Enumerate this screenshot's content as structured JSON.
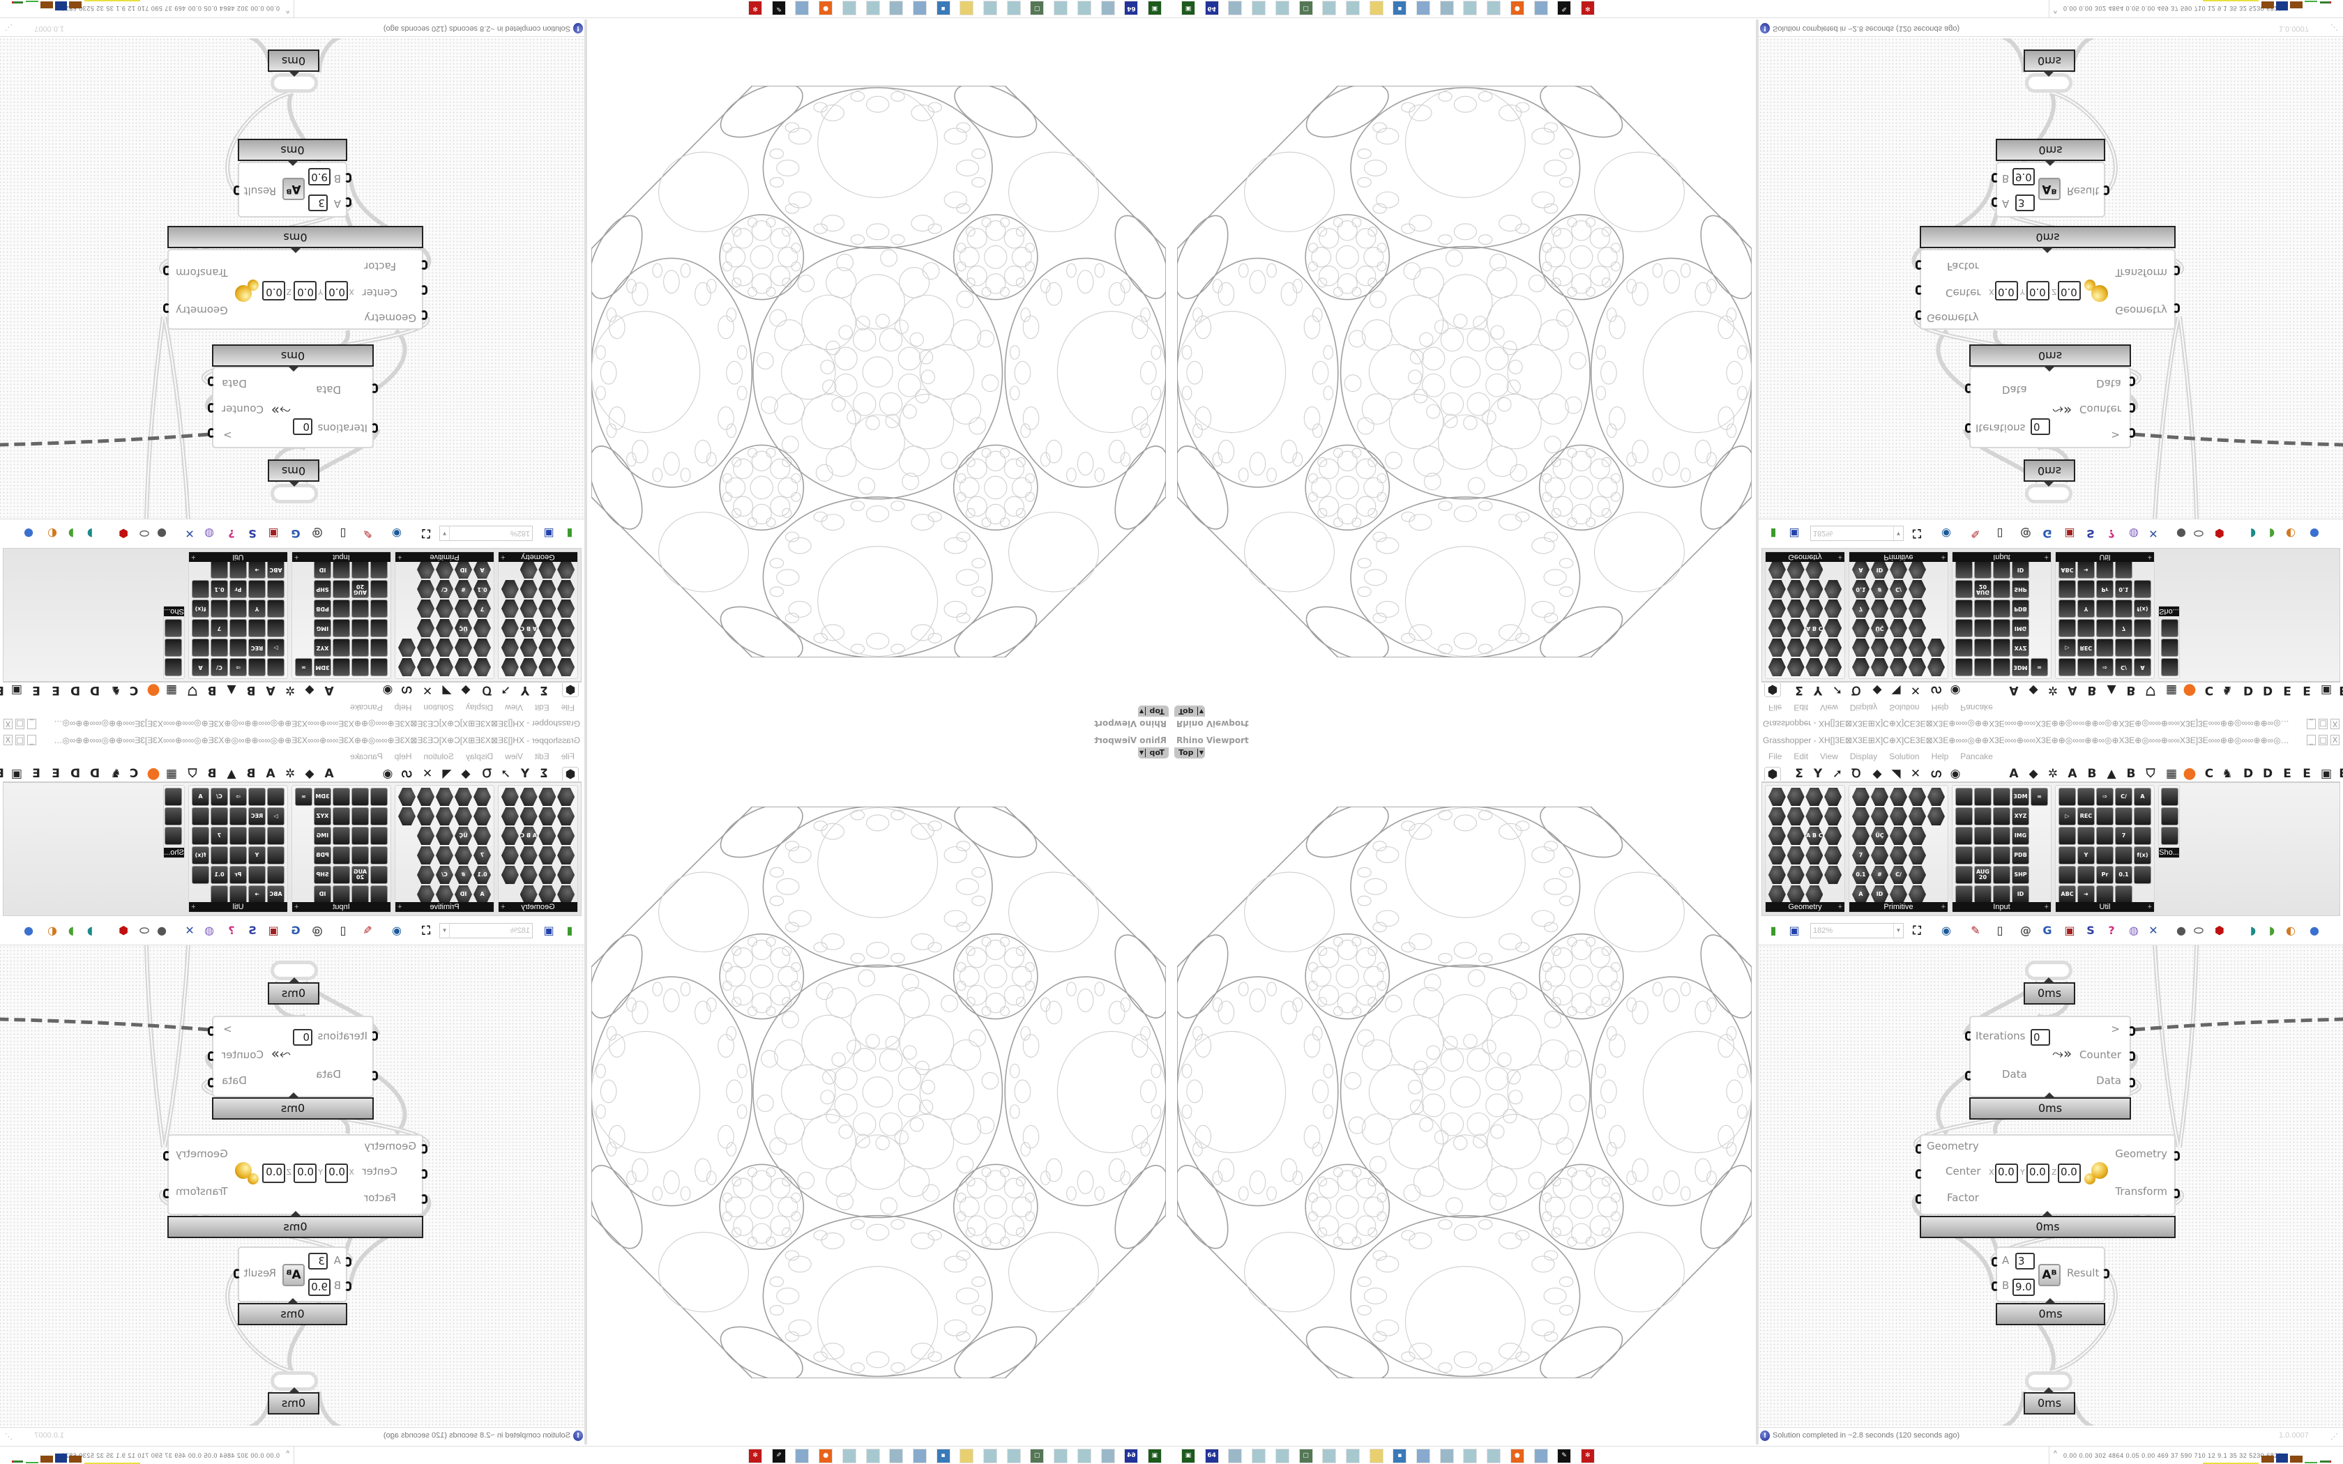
{
  "viewport": {
    "title": "Rhino Viewport",
    "view": "Top"
  },
  "grasshopper": {
    "title": "Grasshopper - XH[]3E⊠X3E⊞X]C⊕X]CE3E⊠X3E⊕∞∞◎⊕⊕X3E∞∞⊕∞∞X3E⊕⊕◎∞∞⊕⊕∞◎⊕X3E⊕◎∞∞⊕∞∞X3E]3E∞∞⊕⊕◎∞∞⊕⊕∞◎⊕X3E⊕◎∞∞⊕⊕◎⊕X3E∞∞◎...",
    "window_controls": {
      "minimize": "_",
      "maximize": "□",
      "close": "X"
    },
    "menu": [
      "File",
      "Edit",
      "View",
      "Display",
      "Solution",
      "Help",
      "Pancake"
    ],
    "tabs_left": [
      "⬢",
      "Σ",
      "Y",
      "➚",
      "Ꝺ",
      "◆",
      "◥",
      "✕",
      "ഗ",
      "◉"
    ],
    "tabs_right": [
      "A",
      "◆",
      "✲",
      "A",
      "B",
      "▲",
      "B",
      "⛉",
      "▦",
      "●",
      "C",
      "♞",
      "D",
      "D",
      "E",
      "E",
      "▣",
      "E"
    ],
    "panels": [
      {
        "label": "Geometry",
        "icons": [
          "",
          "",
          "",
          "",
          "",
          "",
          "",
          "",
          "",
          "",
          "A B C",
          "",
          "",
          "",
          "",
          "",
          "",
          "",
          "",
          "",
          "",
          "",
          ""
        ]
      },
      {
        "label": "Primitive",
        "icons": [
          "",
          "",
          "",
          "",
          "",
          "",
          "",
          "",
          "",
          "",
          "",
          "ÜÇ",
          "",
          "",
          null,
          "7",
          "",
          "",
          "",
          null,
          "0.1",
          "#",
          "C/",
          "",
          null,
          "A",
          "ID",
          "",
          "",
          null
        ]
      },
      {
        "label": "Input",
        "icons": [
          "",
          "",
          "",
          "3DM",
          "∞",
          "",
          "",
          "",
          "XYZ",
          null,
          "",
          "",
          "",
          "IMG",
          null,
          "",
          "",
          "",
          "PDB",
          null,
          "",
          "AUG 20",
          "",
          "SHP",
          null,
          "",
          "",
          "",
          "ID",
          null
        ]
      },
      {
        "label": "Util",
        "icons": [
          "",
          "",
          "⇨",
          "C/",
          "A",
          "▷",
          "REC",
          "",
          "",
          "",
          "",
          "",
          "",
          "7",
          "",
          "",
          "Y",
          "",
          "",
          "f(x)",
          "",
          "",
          "Pr",
          "0.1",
          "",
          "ABC",
          "➜",
          "",
          "",
          null
        ]
      },
      {
        "label": "Sho...",
        "icons": [
          "",
          "",
          ""
        ]
      }
    ],
    "toolbar": {
      "zoom": "182%",
      "icons": [
        {
          "name": "new-document",
          "glyph": "▮",
          "color": "#3a9a2a"
        },
        {
          "name": "save",
          "glyph": "▣",
          "color": "#2244aa"
        },
        {
          "name": "zoom-extents",
          "glyph": "⛶",
          "color": "#111111"
        },
        {
          "name": "preview-eye",
          "glyph": "◉",
          "color": "#1a5a9a"
        },
        {
          "name": "sketch",
          "glyph": "✎",
          "color": "#b02020"
        },
        {
          "name": "cluster",
          "glyph": "▯",
          "color": "#222222"
        },
        {
          "name": "email",
          "glyph": "@",
          "color": "#555555"
        },
        {
          "name": "gha",
          "glyph": "G",
          "color": "#2a5ab0"
        },
        {
          "name": "picture",
          "glyph": "▣",
          "color": "#a02020"
        },
        {
          "name": "search",
          "glyph": "S",
          "color": "#3040a0"
        },
        {
          "name": "package",
          "glyph": "?",
          "color": "#d03080"
        },
        {
          "name": "bulb",
          "glyph": "◍",
          "color": "#8060c0"
        },
        {
          "name": "wires",
          "glyph": "✕",
          "color": "#3050a0"
        },
        {
          "name": "preview-shaded",
          "glyph": "●",
          "color": "#555555"
        },
        {
          "name": "preview-wire",
          "glyph": "⬭",
          "color": "#666666"
        },
        {
          "name": "preview-selected",
          "glyph": "⬢",
          "color": "#c01010"
        },
        {
          "name": "bake-surface",
          "glyph": "◗",
          "color": "#1a8a8a"
        },
        {
          "name": "bake-mesh",
          "glyph": "◗",
          "color": "#4aa030"
        },
        {
          "name": "bake-sphere",
          "glyph": "◐",
          "color": "#d07a20"
        },
        {
          "name": "display-sphere",
          "glyph": "●",
          "color": "#3a70d0"
        }
      ]
    },
    "status": {
      "message": "Solution completed in ~2.8 seconds (120 seconds ago)",
      "version": "1.0.0007"
    }
  },
  "canvas": {
    "top_timer": "0ms",
    "loop": {
      "input_iterations": "Iterations",
      "iterations_value": "0",
      "input_data": "Data",
      "output_next": ">",
      "output_counter": "Counter",
      "output_data": "Data",
      "timer": "0ms"
    },
    "scale": {
      "input_geometry": "Geometry",
      "input_center": "Center",
      "input_factor": "Factor",
      "x_label": "X",
      "y_label": "Y",
      "z_label": "Z",
      "x": "0.0",
      "y": "0.0",
      "z": "0.0",
      "output_geometry": "Geometry",
      "output_transform": "Transform",
      "timer": "0ms"
    },
    "power": {
      "input_a": "A",
      "a_value": "3",
      "input_b": "B",
      "b_value": "9.0",
      "icon_text": "Aᴮ",
      "output_result": "Result",
      "timer": "0ms"
    },
    "bottom_timer": "0ms"
  },
  "taskbar": {
    "icons": [
      {
        "name": "terminal",
        "color": "#1e5a1e",
        "glyph": "▣"
      },
      {
        "name": "floppy-64",
        "color": "#22339a",
        "glyph": "64"
      },
      {
        "name": "document",
        "color": "#9ab8c8",
        "glyph": ""
      },
      {
        "name": "document",
        "color": "#a8c8d0",
        "glyph": ""
      },
      {
        "name": "document",
        "color": "#a8c8d0",
        "glyph": ""
      },
      {
        "name": "monitor",
        "color": "#557755",
        "glyph": "▢"
      },
      {
        "name": "document",
        "color": "#a8c8d0",
        "glyph": ""
      },
      {
        "name": "document",
        "color": "#a8c8d0",
        "glyph": ""
      },
      {
        "name": "folder",
        "color": "#e8d070",
        "glyph": ""
      },
      {
        "name": "app-window",
        "color": "#3a7ab8",
        "glyph": "▪"
      },
      {
        "name": "document",
        "color": "#88aacc",
        "glyph": ""
      },
      {
        "name": "document",
        "color": "#9ab8c8",
        "glyph": ""
      },
      {
        "name": "document",
        "color": "#a8c8d0",
        "glyph": ""
      },
      {
        "name": "document",
        "color": "#a8c8d0",
        "glyph": ""
      },
      {
        "name": "firefox",
        "color": "#e8641a",
        "glyph": "●"
      },
      {
        "name": "document",
        "color": "#88aacc",
        "glyph": ""
      },
      {
        "name": "inkscape",
        "color": "#111111",
        "glyph": "✎"
      },
      {
        "name": "red-app",
        "color": "#c01818",
        "glyph": "✻"
      }
    ],
    "tray_chevron": "^",
    "tray_readout": "0.00 0.00 302 4864 0.05 0.00 469 37 590 710 12 9.1 35 32 5230 6823"
  },
  "colors": {
    "wire_dashed": "#666666",
    "drawing_stroke": "#a0a0a0",
    "drawing_faint": "#cfcfcf",
    "panel_label_bg": "#111111"
  }
}
